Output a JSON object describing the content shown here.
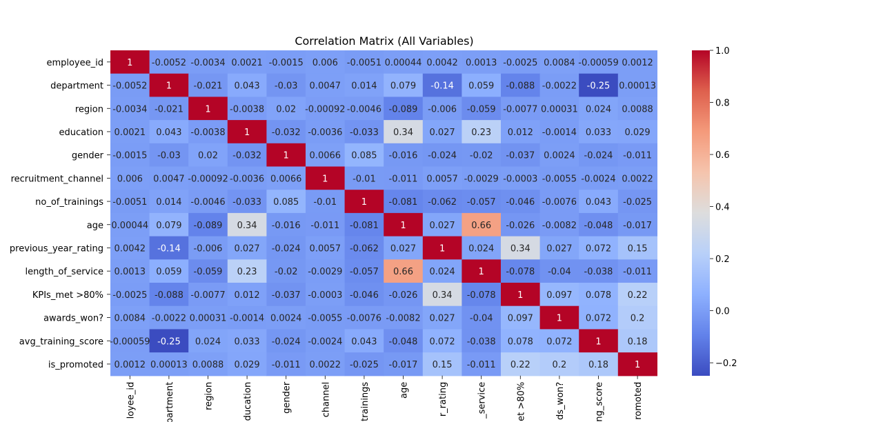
{
  "chart_data": {
    "type": "heatmap",
    "title": "Correlation Matrix (All Variables)",
    "row_labels": [
      "employee_id",
      "department",
      "region",
      "education",
      "gender",
      "recruitment_channel",
      "no_of_trainings",
      "age",
      "previous_year_rating",
      "length_of_service",
      "KPIs_met >80%",
      "awards_won?",
      "avg_training_score",
      "is_promoted"
    ],
    "col_labels_visible": [
      "loyee_id",
      "partment",
      "region",
      "ducation",
      "gender",
      "channel",
      "trainings",
      "age",
      "r_rating",
      "_service",
      "et >80%",
      "ds_won?",
      "ng_score",
      "romoted"
    ],
    "cell_labels": [
      [
        "1",
        "-0.0052",
        "-0.0034",
        "0.0021",
        "-0.0015",
        "0.006",
        "-0.0051",
        "0.00044",
        "0.0042",
        "0.0013",
        "-0.0025",
        "0.0084",
        "-0.00059",
        "0.0012"
      ],
      [
        "-0.0052",
        "1",
        "-0.021",
        "0.043",
        "-0.03",
        "0.0047",
        "0.014",
        "0.079",
        "-0.14",
        "0.059",
        "-0.088",
        "-0.0022",
        "-0.25",
        "0.00013"
      ],
      [
        "-0.0034",
        "-0.021",
        "1",
        "-0.0038",
        "0.02",
        "-0.00092",
        "-0.0046",
        "-0.089",
        "-0.006",
        "-0.059",
        "-0.0077",
        "0.00031",
        "0.024",
        "0.0088"
      ],
      [
        "0.0021",
        "0.043",
        "-0.0038",
        "1",
        "-0.032",
        "-0.0036",
        "-0.033",
        "0.34",
        "0.027",
        "0.23",
        "0.012",
        "-0.0014",
        "0.033",
        "0.029"
      ],
      [
        "-0.0015",
        "-0.03",
        "0.02",
        "-0.032",
        "1",
        "0.0066",
        "0.085",
        "-0.016",
        "-0.024",
        "-0.02",
        "-0.037",
        "0.0024",
        "-0.024",
        "-0.011"
      ],
      [
        "0.006",
        "0.0047",
        "-0.00092",
        "-0.0036",
        "0.0066",
        "1",
        "-0.01",
        "-0.011",
        "0.0057",
        "-0.0029",
        "-0.0003",
        "-0.0055",
        "-0.0024",
        "0.0022"
      ],
      [
        "-0.0051",
        "0.014",
        "-0.0046",
        "-0.033",
        "0.085",
        "-0.01",
        "1",
        "-0.081",
        "-0.062",
        "-0.057",
        "-0.046",
        "-0.0076",
        "0.043",
        "-0.025"
      ],
      [
        "0.00044",
        "0.079",
        "-0.089",
        "0.34",
        "-0.016",
        "-0.011",
        "-0.081",
        "1",
        "0.027",
        "0.66",
        "-0.026",
        "-0.0082",
        "-0.048",
        "-0.017"
      ],
      [
        "0.0042",
        "-0.14",
        "-0.006",
        "0.027",
        "-0.024",
        "0.0057",
        "-0.062",
        "0.027",
        "1",
        "0.024",
        "0.34",
        "0.027",
        "0.072",
        "0.15"
      ],
      [
        "0.0013",
        "0.059",
        "-0.059",
        "0.23",
        "-0.02",
        "-0.0029",
        "-0.057",
        "0.66",
        "0.024",
        "1",
        "-0.078",
        "-0.04",
        "-0.038",
        "-0.011"
      ],
      [
        "-0.0025",
        "-0.088",
        "-0.0077",
        "0.012",
        "-0.037",
        "-0.0003",
        "-0.046",
        "-0.026",
        "0.34",
        "-0.078",
        "1",
        "0.097",
        "0.078",
        "0.22"
      ],
      [
        "0.0084",
        "-0.0022",
        "0.00031",
        "-0.0014",
        "0.0024",
        "-0.0055",
        "-0.0076",
        "-0.0082",
        "0.027",
        "-0.04",
        "0.097",
        "1",
        "0.072",
        "0.2"
      ],
      [
        "-0.00059",
        "-0.25",
        "0.024",
        "0.033",
        "-0.024",
        "-0.0024",
        "0.043",
        "-0.048",
        "0.072",
        "-0.038",
        "0.078",
        "0.072",
        "1",
        "0.18"
      ],
      [
        "0.0012",
        "0.00013",
        "0.0088",
        "0.029",
        "-0.011",
        "0.0022",
        "-0.025",
        "-0.017",
        "0.15",
        "-0.011",
        "0.22",
        "0.2",
        "0.18",
        "1"
      ]
    ],
    "colorbar": {
      "vmin": -0.25,
      "vmax": 1.0,
      "ticks": [
        -0.2,
        0.0,
        0.2,
        0.4,
        0.6,
        0.8,
        1.0
      ],
      "tick_labels": [
        "−0.2",
        "0.0",
        "0.2",
        "0.4",
        "0.6",
        "0.8",
        "1.0"
      ]
    },
    "colormap": "coolwarm",
    "grid": false
  }
}
